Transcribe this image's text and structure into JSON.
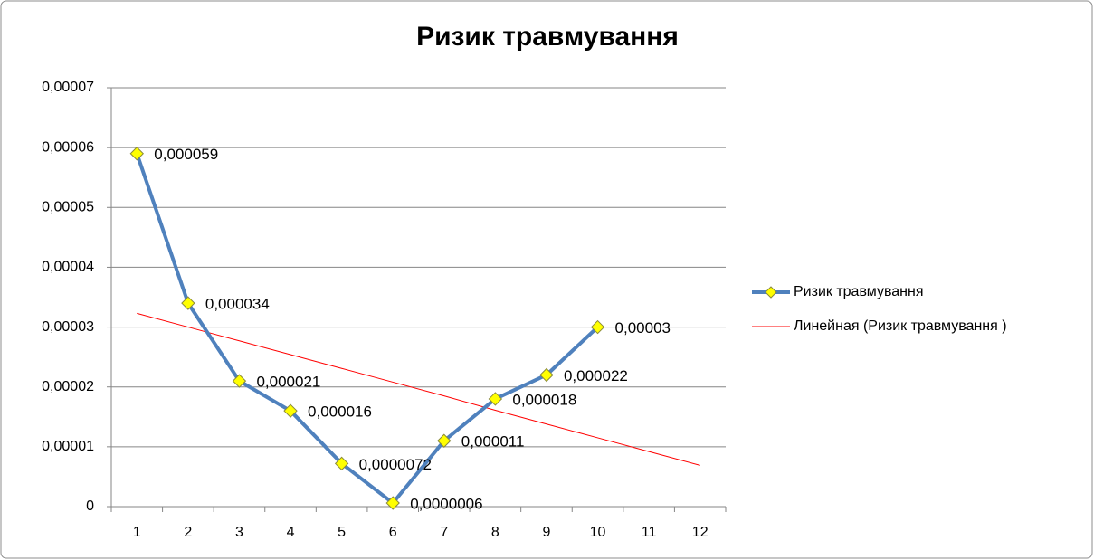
{
  "chart_data": {
    "type": "line",
    "title": "Ризик  травмування",
    "categories": [
      1,
      2,
      3,
      4,
      5,
      6,
      7,
      8,
      9,
      10,
      11,
      12
    ],
    "series": [
      {
        "name": "Ризик  травмування",
        "color": "#4f81bd",
        "marker": "diamond",
        "marker_color": "#ffff00",
        "values": [
          5.9e-05,
          3.4e-05,
          2.1e-05,
          1.6e-05,
          7.2e-06,
          6e-07,
          1.1e-05,
          1.8e-05,
          2.2e-05,
          3e-05,
          null,
          null
        ],
        "value_labels": [
          "0,000059",
          "0,000034",
          "0,000021",
          "0,000016",
          "0,0000072",
          "0,0000006",
          "0,000011",
          "0,000018",
          "0,000022",
          "0,00003",
          null,
          null
        ]
      },
      {
        "name": "Линейная (Ризик  травмування  )",
        "color": "#ff0000",
        "marker": "none",
        "values": [
          3.23e-05,
          3e-05,
          2.77e-05,
          2.54e-05,
          2.31e-05,
          2.08e-05,
          1.85e-05,
          1.61e-05,
          1.38e-05,
          1.15e-05,
          9.2e-06,
          6.9e-06
        ]
      }
    ],
    "ylim": [
      0,
      7e-05
    ],
    "yticks": [
      0,
      {
        "value": 1e-05,
        "label": "0,00001"
      },
      {
        "value": 2e-05,
        "label": "0,00002"
      },
      {
        "value": 3e-05,
        "label": "0,00003"
      },
      {
        "value": 4e-05,
        "label": "0,00004"
      },
      {
        "value": 5e-05,
        "label": "0,00005"
      },
      {
        "value": 6e-05,
        "label": "0,00006"
      },
      {
        "value": 7e-05,
        "label": "0,00007"
      }
    ],
    "grid": true,
    "legend": "right"
  }
}
